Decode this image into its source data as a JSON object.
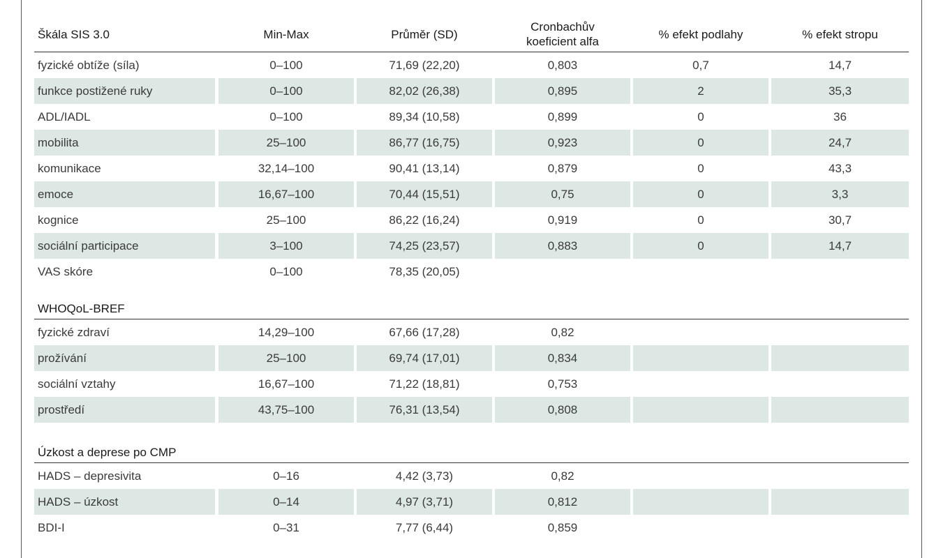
{
  "header": {
    "col0": "Škála SIS 3.0",
    "col1": "Min-Max",
    "col2": "Průměr (SD)",
    "col3_line1": "Cronbachův",
    "col3_line2": "koeficient alfa",
    "col4": "% efekt podlahy",
    "col5": "% efekt stropu"
  },
  "sis": [
    {
      "name": "fyzické obtíže (síla)",
      "range": "0–100",
      "mean": "71,69 (22,20)",
      "alpha": "0,803",
      "floor": "0,7",
      "ceiling": "14,7"
    },
    {
      "name": "funkce postižené ruky",
      "range": "0–100",
      "mean": "82,02 (26,38)",
      "alpha": "0,895",
      "floor": "2",
      "ceiling": "35,3"
    },
    {
      "name": "ADL/IADL",
      "range": "0–100",
      "mean": "89,34 (10,58)",
      "alpha": "0,899",
      "floor": "0",
      "ceiling": "36"
    },
    {
      "name": "mobilita",
      "range": "25–100",
      "mean": "86,77 (16,75)",
      "alpha": "0,923",
      "floor": "0",
      "ceiling": "24,7"
    },
    {
      "name": "komunikace",
      "range": "32,14–100",
      "mean": "90,41 (13,14)",
      "alpha": "0,879",
      "floor": "0",
      "ceiling": "43,3"
    },
    {
      "name": "emoce",
      "range": "16,67–100",
      "mean": "70,44 (15,51)",
      "alpha": "0,75",
      "floor": "0",
      "ceiling": "3,3"
    },
    {
      "name": "kognice",
      "range": "25–100",
      "mean": "86,22 (16,24)",
      "alpha": "0,919",
      "floor": "0",
      "ceiling": "30,7"
    },
    {
      "name": "sociální participace",
      "range": "3–100",
      "mean": "74,25 (23,57)",
      "alpha": "0,883",
      "floor": "0",
      "ceiling": "14,7"
    },
    {
      "name": "VAS skóre",
      "range": "0–100",
      "mean": "78,35 (20,05)",
      "alpha": "",
      "floor": "",
      "ceiling": ""
    }
  ],
  "section_whoqol": "WHOQoL-BREF",
  "whoqol": [
    {
      "name": "fyzické zdraví",
      "range": "14,29–100",
      "mean": "67,66 (17,28)",
      "alpha": "0,82",
      "floor": "",
      "ceiling": ""
    },
    {
      "name": "prožívání",
      "range": "25–100",
      "mean": "69,74 (17,01)",
      "alpha": "0,834",
      "floor": "",
      "ceiling": ""
    },
    {
      "name": "sociální vztahy",
      "range": "16,67–100",
      "mean": "71,22 (18,81)",
      "alpha": "0,753",
      "floor": "",
      "ceiling": ""
    },
    {
      "name": "prostředí",
      "range": "43,75–100",
      "mean": "76,31 (13,54)",
      "alpha": "0,808",
      "floor": "",
      "ceiling": ""
    }
  ],
  "section_anxiety": "Úzkost a deprese po CMP",
  "anxiety": [
    {
      "name": "HADS – depresivita",
      "range": "0–16",
      "mean": "4,42 (3,73)",
      "alpha": "0,82",
      "floor": "",
      "ceiling": ""
    },
    {
      "name": "HADS – úzkost",
      "range": "0–14",
      "mean": "4,97 (3,71)",
      "alpha": "0,812",
      "floor": "",
      "ceiling": ""
    },
    {
      "name": "BDI-I",
      "range": "0–31",
      "mean": "7,77 (6,44)",
      "alpha": "0,859",
      "floor": "",
      "ceiling": ""
    }
  ],
  "colors": {
    "shade": "#dde8e5",
    "rule": "#333333",
    "text": "#3a3a3a"
  }
}
